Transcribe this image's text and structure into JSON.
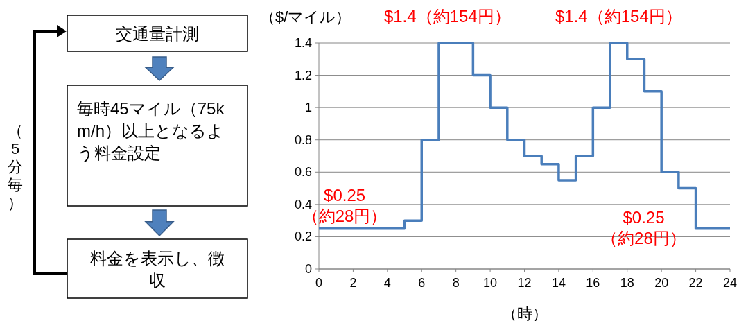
{
  "chart_data": [
    {
      "type": "other",
      "annotations": [
        "交通量計測",
        "毎時45マイル（75km/h）以上となるよう料金設定",
        "料金を表示し、徴収",
        "（5分毎）"
      ]
    },
    {
      "type": "step",
      "ylabel": "（$/マイル）",
      "xlabel": "（時）",
      "color": "#4a7ebb",
      "x": [
        0,
        5,
        6,
        7,
        9,
        10,
        11,
        12,
        13,
        14,
        15,
        16,
        17,
        18,
        19,
        20,
        21,
        22,
        24
      ],
      "values": [
        0.25,
        0.3,
        0.8,
        1.4,
        1.2,
        1.0,
        0.8,
        0.7,
        0.65,
        0.55,
        0.7,
        1.0,
        1.4,
        1.3,
        1.1,
        0.6,
        0.5,
        0.25,
        0.25
      ],
      "xlim": [
        0,
        24
      ],
      "xticks": [
        0,
        2,
        4,
        6,
        8,
        10,
        12,
        14,
        16,
        18,
        20,
        22,
        24
      ],
      "ylim": [
        0,
        1.4
      ],
      "yticks": [
        0,
        0.2,
        0.4,
        0.6,
        0.8,
        1,
        1.2,
        1.4
      ],
      "grid": "y",
      "annotations": [
        {
          "text": "$1.4（約154円）",
          "x": 7.5,
          "y": 1.4
        },
        {
          "text": "$1.4（約154円）",
          "x": 17.5,
          "y": 1.4
        },
        {
          "text": "$0.25\n（約28円）",
          "x": 1.5,
          "y": 0.25
        },
        "$0.25\n（約28円）"
      ]
    }
  ]
}
